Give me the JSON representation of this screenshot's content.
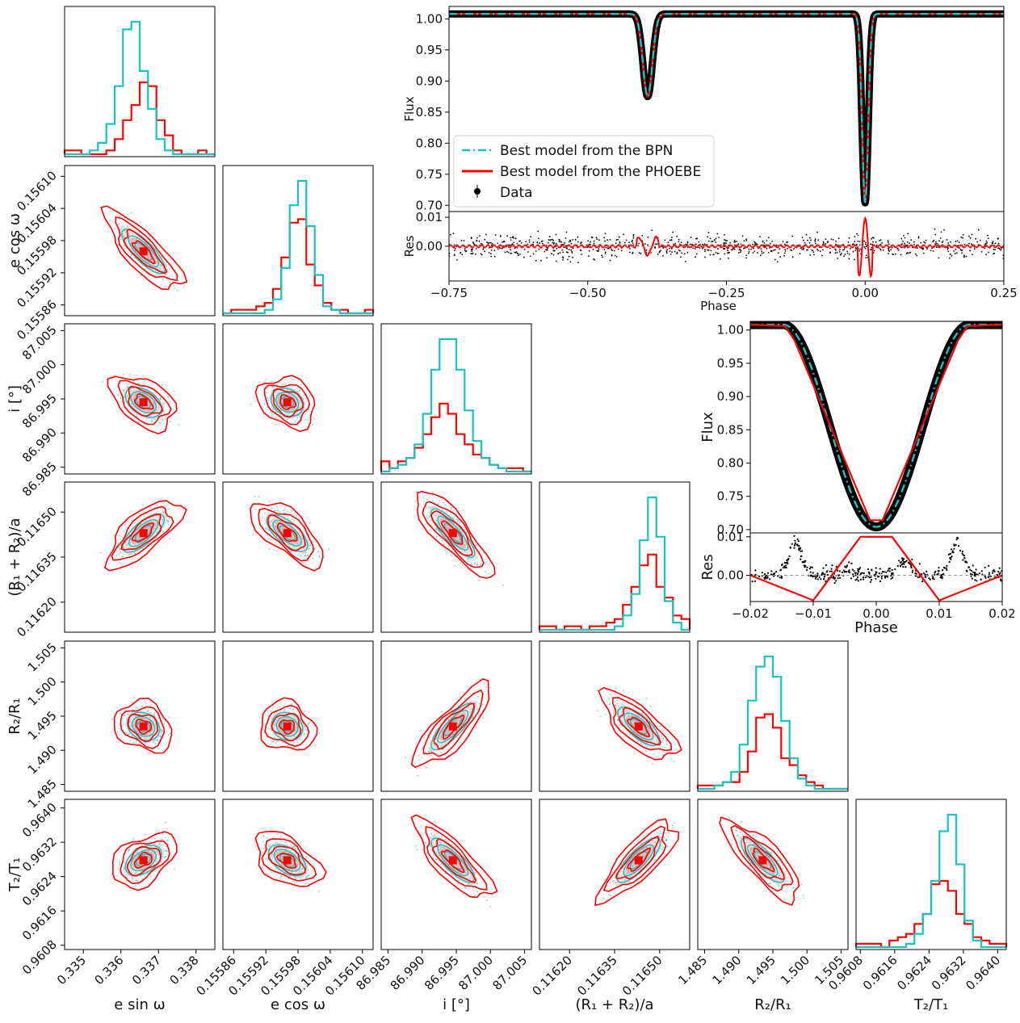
{
  "colors": {
    "bpn": "#17c3c3",
    "phoebe": "#ff0000",
    "data": "#000000",
    "frame": "#000000",
    "density": "#f5c9c9"
  },
  "chart_data": [
    {
      "type": "corner",
      "title": "",
      "parameters": [
        {
          "key": "esinw",
          "label": "e sin ω",
          "tick_labels": [
            "0.335",
            "0.336",
            "0.337",
            "0.338"
          ],
          "ticks": [
            0.335,
            0.336,
            0.337,
            0.338
          ],
          "range": [
            0.3345,
            0.3385
          ],
          "best": 0.3366
        },
        {
          "key": "ecosw",
          "label": "e cos ω",
          "tick_labels": [
            "0.15586",
            "0.15592",
            "0.15598",
            "0.15604",
            "0.15610"
          ],
          "ticks": [
            0.15586,
            0.15592,
            0.15598,
            0.15604,
            0.1561
          ],
          "range": [
            0.15584,
            0.15612
          ],
          "best": 0.15596
        },
        {
          "key": "incl",
          "label": "i [°]",
          "tick_labels": [
            "86.985",
            "86.990",
            "86.995",
            "87.000",
            "87.005"
          ],
          "ticks": [
            86.985,
            86.99,
            86.995,
            87.0,
            87.005
          ],
          "range": [
            86.984,
            87.006
          ],
          "best": 86.9945
        },
        {
          "key": "rsum",
          "label": "(R₁ + R₂)/a",
          "tick_labels": [
            "0.11620",
            "0.11635",
            "0.11650"
          ],
          "ticks": [
            0.1162,
            0.11635,
            0.1165
          ],
          "range": [
            0.1161,
            0.1166
          ],
          "best": 0.11643
        },
        {
          "key": "k",
          "label": "R₂/R₁",
          "tick_labels": [
            "1.485",
            "1.490",
            "1.495",
            "1.500",
            "1.505"
          ],
          "ticks": [
            1.485,
            1.49,
            1.495,
            1.5,
            1.505
          ],
          "range": [
            1.484,
            1.506
          ],
          "best": 1.4935
        },
        {
          "key": "tratio",
          "label": "T₂/T₁",
          "tick_labels": [
            "0.9608",
            "0.9616",
            "0.9624",
            "0.9632",
            "0.9640"
          ],
          "ticks": [
            0.9608,
            0.9616,
            0.9624,
            0.9632,
            0.964
          ],
          "range": [
            0.9607,
            0.9642
          ],
          "best": 0.96278
        }
      ],
      "correlations": {
        "1-0": -0.75,
        "2-0": -0.3,
        "2-1": -0.15,
        "3-0": 0.6,
        "3-1": -0.55,
        "3-2": -0.85,
        "4-0": -0.15,
        "4-1": -0.1,
        "4-2": 0.8,
        "4-3": -0.6,
        "5-0": 0.3,
        "5-1": -0.35,
        "5-2": -0.75,
        "5-3": 0.75,
        "5-4": -0.75
      },
      "histograms": [
        {
          "bpn": [
            0,
            0,
            0,
            1,
            3,
            8,
            18,
            33,
            35,
            22,
            12,
            4,
            1,
            0,
            0,
            0,
            0,
            0
          ],
          "phoebe": [
            1,
            1,
            0,
            0,
            0,
            1,
            4,
            9,
            13,
            19,
            18,
            9,
            5,
            1,
            0,
            0,
            1,
            0
          ]
        },
        {
          "bpn": [
            0,
            0,
            0,
            0,
            0,
            1,
            4,
            13,
            31,
            38,
            25,
            11,
            2,
            1,
            0,
            0,
            0,
            0
          ],
          "phoebe": [
            0,
            1,
            1,
            1,
            2,
            3,
            7,
            16,
            26,
            27,
            14,
            8,
            3,
            1,
            1,
            0,
            0,
            1
          ]
        },
        {
          "bpn": [
            0,
            1,
            2,
            4,
            8,
            17,
            30,
            39,
            39,
            30,
            18,
            9,
            4,
            2,
            1,
            0,
            0,
            0
          ],
          "phoebe": [
            3,
            1,
            3,
            4,
            7,
            11,
            16,
            20,
            17,
            11,
            8,
            5,
            4,
            2,
            1,
            1,
            1,
            0
          ]
        },
        {
          "bpn": [
            0,
            0,
            0,
            0,
            0,
            0,
            0,
            0,
            0,
            1,
            4,
            10,
            25,
            37,
            26,
            8,
            2,
            0
          ],
          "phoebe": [
            1,
            1,
            0,
            1,
            1,
            0,
            1,
            1,
            2,
            3,
            7,
            12,
            18,
            21,
            12,
            9,
            4,
            3
          ]
        },
        {
          "bpn": [
            0,
            0,
            1,
            2,
            5,
            13,
            26,
            36,
            39,
            33,
            20,
            9,
            3,
            1,
            0,
            0,
            0,
            0
          ],
          "phoebe": [
            1,
            1,
            1,
            2,
            2,
            5,
            11,
            21,
            22,
            18,
            9,
            7,
            4,
            2,
            1,
            0,
            0,
            0
          ]
        },
        {
          "bpn": [
            0,
            0,
            0,
            0,
            0,
            0,
            1,
            4,
            10,
            20,
            35,
            40,
            25,
            8,
            2,
            0,
            0,
            0
          ],
          "phoebe": [
            1,
            1,
            1,
            0,
            2,
            3,
            4,
            7,
            10,
            19,
            20,
            17,
            10,
            7,
            3,
            2,
            1,
            1
          ]
        }
      ]
    },
    {
      "type": "line",
      "panel": "full phase light curve",
      "xlabel": "Phase",
      "ylabel": "Flux",
      "xlim": [
        -0.75,
        0.25
      ],
      "ylim": [
        0.69,
        1.02
      ],
      "x_tick_labels": [
        "−0.75",
        "−0.50",
        "−0.25",
        "0.00",
        "0.25"
      ],
      "x_ticks": [
        -0.75,
        -0.5,
        -0.25,
        0.0,
        0.25
      ],
      "y_tick_labels": [
        "0.70",
        "0.75",
        "0.80",
        "0.85",
        "0.90",
        "0.95",
        "1.00"
      ],
      "y_ticks": [
        0.7,
        0.75,
        0.8,
        0.85,
        0.9,
        0.95,
        1.0
      ],
      "baseline": 1.008,
      "eclipses": [
        {
          "center": -0.392,
          "depth": 0.133,
          "width": 0.012
        },
        {
          "center": 0.0,
          "depth": 0.304,
          "width": 0.0078
        }
      ],
      "series": [
        {
          "name": "Best model from the BPN",
          "style": "dash-dot",
          "color": "#17c3c3"
        },
        {
          "name": "Best model from the PHOEBE",
          "style": "solid",
          "color": "#ff0000"
        },
        {
          "name": "Data",
          "style": "errorbar points",
          "color": "#000000"
        }
      ],
      "residual": {
        "ylabel": "Res",
        "ylim": [
          -0.012,
          0.012
        ],
        "y_tick_labels": [
          "0.00",
          "0.01"
        ],
        "y_ticks": [
          0.0,
          0.01
        ],
        "noise": 0.0028,
        "phoebe_spike": 0.01
      }
    },
    {
      "type": "line",
      "panel": "zoom on primary eclipse",
      "xlabel": "Phase",
      "ylabel": "Flux",
      "xlim": [
        -0.02,
        0.02
      ],
      "ylim": [
        0.695,
        1.013
      ],
      "x_tick_labels": [
        "−0.02",
        "−0.01",
        "0.00",
        "0.01",
        "0.02"
      ],
      "x_ticks": [
        -0.02,
        -0.01,
        0.0,
        0.01,
        0.02
      ],
      "y_tick_labels": [
        "0.70",
        "0.75",
        "0.80",
        "0.85",
        "0.90",
        "0.95",
        "1.00"
      ],
      "y_ticks": [
        0.7,
        0.75,
        0.8,
        0.85,
        0.9,
        0.95,
        1.0
      ],
      "baseline": 1.008,
      "depth": 0.304,
      "contact_half_width": 0.0148,
      "phoebe_vertices": [
        [
          -0.02,
          1.008
        ],
        [
          -0.0145,
          1.006
        ],
        [
          -0.013,
          0.985
        ],
        [
          -0.001,
          0.714
        ],
        [
          0.001,
          0.714
        ],
        [
          0.013,
          0.985
        ],
        [
          0.0145,
          1.006
        ],
        [
          0.02,
          1.008
        ]
      ],
      "residual": {
        "ylabel": "Res",
        "ylim": [
          -0.0068,
          0.011
        ],
        "y_tick_labels": [
          "0.00",
          "0.01"
        ],
        "y_ticks": [
          0.0,
          0.01
        ],
        "phoebe_vertices": [
          [
            -0.02,
            0.0
          ],
          [
            -0.01,
            -0.0065
          ],
          [
            -0.0025,
            0.01
          ],
          [
            0.0025,
            0.01
          ],
          [
            0.01,
            -0.0065
          ],
          [
            0.02,
            0.0
          ]
        ],
        "bumps": [
          [
            -0.0128,
            0.0085
          ],
          [
            0.0128,
            0.0085
          ],
          [
            0.0045,
            0.004
          ],
          [
            -0.0045,
            0.0015
          ]
        ]
      }
    }
  ]
}
